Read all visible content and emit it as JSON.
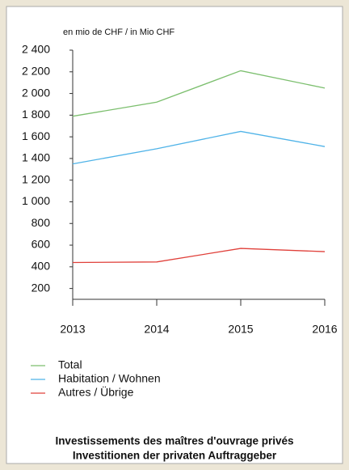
{
  "chart_data": {
    "type": "line",
    "unit_label": "en mio de CHF / in Mio CHF",
    "title": [
      "Investissements des maîtres d'ouvrage privés",
      "Investitionen der privaten Auftraggeber"
    ],
    "x": [
      2013,
      2014,
      2015,
      2016
    ],
    "xlim": [
      2013,
      2016
    ],
    "xticks": [
      2013,
      2014,
      2015,
      2016
    ],
    "ylim": [
      100,
      2400
    ],
    "yticks": [
      {
        "value": 2400,
        "label": "2 400"
      },
      {
        "value": 2200,
        "label": "2 200"
      },
      {
        "value": 2000,
        "label": "2 000"
      },
      {
        "value": 1800,
        "label": "1 800"
      },
      {
        "value": 1600,
        "label": "1 600"
      },
      {
        "value": 1400,
        "label": "1 400"
      },
      {
        "value": 1200,
        "label": "1 200"
      },
      {
        "value": 1000,
        "label": "1 000"
      },
      800,
      600,
      400,
      200
    ],
    "grid": false,
    "series": [
      {
        "name": "Total",
        "color": "#7cbf6e",
        "values": [
          1790,
          1920,
          2210,
          2050
        ]
      },
      {
        "name": "Habitation / Wohnen",
        "color": "#4fb3e8",
        "values": [
          1350,
          1490,
          1650,
          1510
        ]
      },
      {
        "name": "Autres / Übrige",
        "color": "#e0403a",
        "values": [
          440,
          445,
          570,
          540
        ]
      }
    ]
  }
}
